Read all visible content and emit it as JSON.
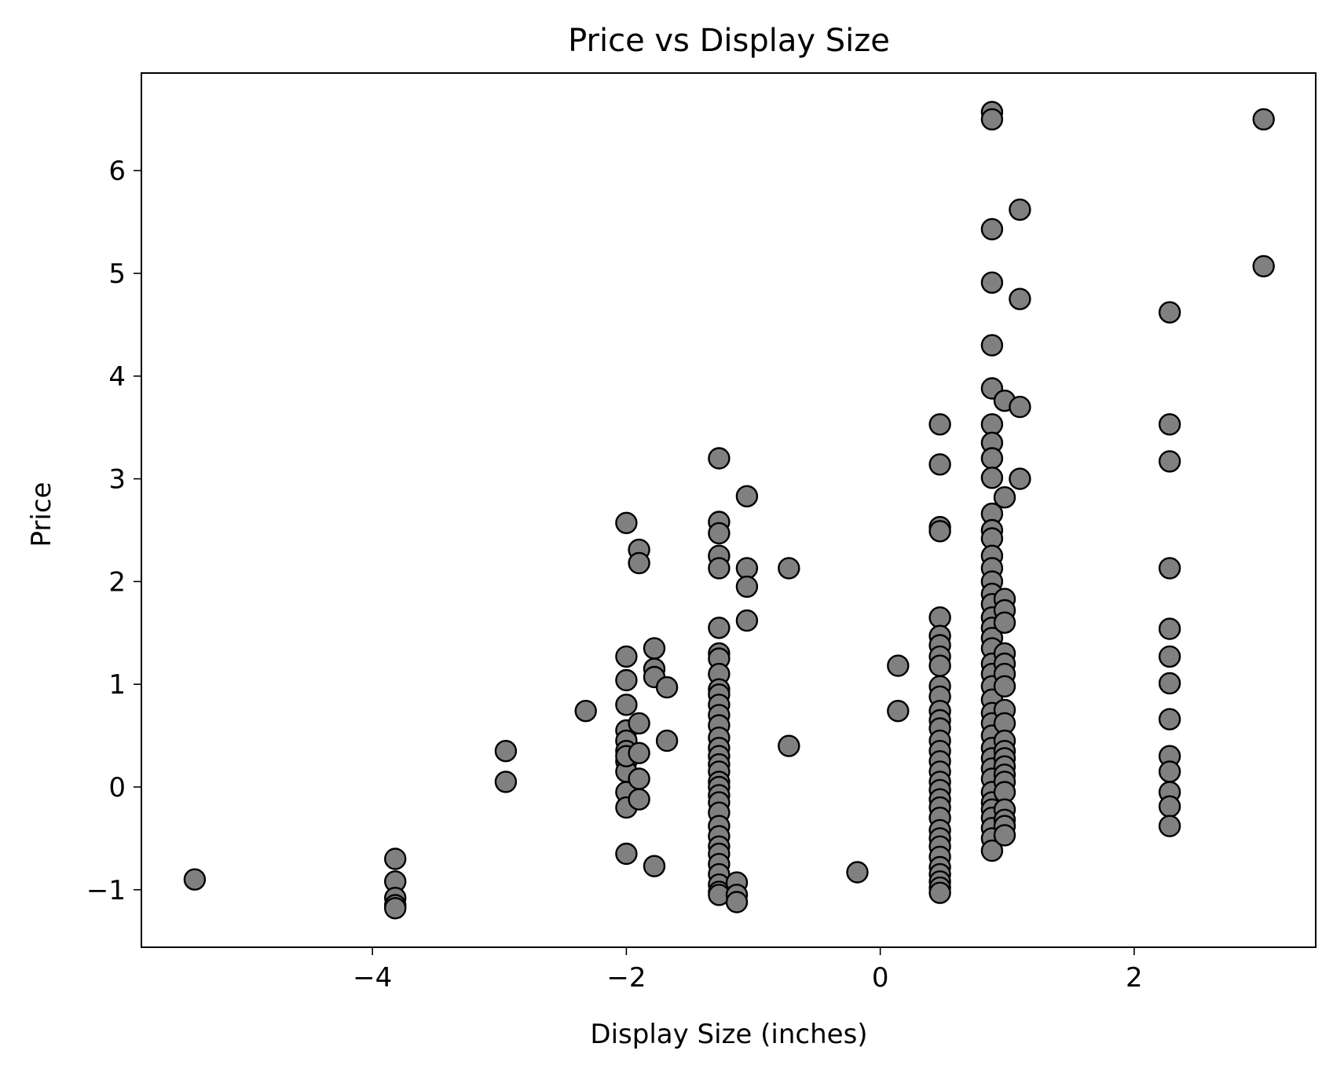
{
  "chart_data": {
    "type": "scatter",
    "title": "Price vs Display Size",
    "xlabel": "Display Size (inches)",
    "ylabel": "Price",
    "xlim": [
      -5.82,
      3.43
    ],
    "ylim": [
      -1.56,
      6.95
    ],
    "x_ticks": [
      -4,
      -2,
      0,
      2
    ],
    "x_tick_labels": [
      "−4",
      "−2",
      "0",
      "2"
    ],
    "y_ticks": [
      -1,
      0,
      1,
      2,
      3,
      4,
      5,
      6
    ],
    "y_tick_labels": [
      "−1",
      "0",
      "1",
      "2",
      "3",
      "4",
      "5",
      "6"
    ],
    "grid": false,
    "marker_color": "#808080",
    "marker_edge_color": "#000000",
    "points": [
      [
        -5.4,
        -0.9
      ],
      [
        -3.82,
        -0.7
      ],
      [
        -3.82,
        -0.92
      ],
      [
        -3.82,
        -1.08
      ],
      [
        -3.82,
        -1.15
      ],
      [
        -3.82,
        -1.18
      ],
      [
        -2.95,
        0.35
      ],
      [
        -2.95,
        0.05
      ],
      [
        -2.32,
        0.74
      ],
      [
        -2.0,
        2.57
      ],
      [
        -2.0,
        1.27
      ],
      [
        -2.0,
        1.04
      ],
      [
        -2.0,
        0.8
      ],
      [
        -2.0,
        0.55
      ],
      [
        -2.0,
        0.45
      ],
      [
        -2.0,
        0.35
      ],
      [
        -2.0,
        0.25
      ],
      [
        -2.0,
        0.15
      ],
      [
        -2.0,
        -0.05
      ],
      [
        -2.0,
        -0.2
      ],
      [
        -2.0,
        -0.65
      ],
      [
        -2.0,
        0.3
      ],
      [
        -1.9,
        2.31
      ],
      [
        -1.9,
        2.18
      ],
      [
        -1.9,
        0.62
      ],
      [
        -1.9,
        0.33
      ],
      [
        -1.9,
        0.08
      ],
      [
        -1.9,
        -0.12
      ],
      [
        -1.78,
        1.35
      ],
      [
        -1.78,
        1.15
      ],
      [
        -1.78,
        1.07
      ],
      [
        -1.78,
        -0.77
      ],
      [
        -1.68,
        0.97
      ],
      [
        -1.68,
        0.45
      ],
      [
        -1.27,
        3.2
      ],
      [
        -1.27,
        2.58
      ],
      [
        -1.27,
        2.47
      ],
      [
        -1.27,
        2.25
      ],
      [
        -1.27,
        2.13
      ],
      [
        -1.27,
        1.55
      ],
      [
        -1.27,
        1.3
      ],
      [
        -1.27,
        1.25
      ],
      [
        -1.27,
        1.1
      ],
      [
        -1.27,
        0.95
      ],
      [
        -1.27,
        0.9
      ],
      [
        -1.27,
        0.8
      ],
      [
        -1.27,
        0.7
      ],
      [
        -1.27,
        0.6
      ],
      [
        -1.27,
        0.48
      ],
      [
        -1.27,
        0.38
      ],
      [
        -1.27,
        0.3
      ],
      [
        -1.27,
        0.22
      ],
      [
        -1.27,
        0.15
      ],
      [
        -1.27,
        0.05
      ],
      [
        -1.27,
        0.0
      ],
      [
        -1.27,
        -0.08
      ],
      [
        -1.27,
        -0.15
      ],
      [
        -1.27,
        -0.25
      ],
      [
        -1.27,
        -0.38
      ],
      [
        -1.27,
        -0.48
      ],
      [
        -1.27,
        -0.58
      ],
      [
        -1.27,
        -0.65
      ],
      [
        -1.27,
        -0.75
      ],
      [
        -1.27,
        -0.85
      ],
      [
        -1.27,
        -0.95
      ],
      [
        -1.27,
        -1.02
      ],
      [
        -1.27,
        -1.05
      ],
      [
        -1.13,
        -0.93
      ],
      [
        -1.13,
        -1.05
      ],
      [
        -1.13,
        -1.12
      ],
      [
        -1.05,
        2.83
      ],
      [
        -1.05,
        2.13
      ],
      [
        -1.05,
        1.95
      ],
      [
        -1.05,
        1.62
      ],
      [
        -0.72,
        2.13
      ],
      [
        -0.72,
        0.4
      ],
      [
        -0.18,
        -0.83
      ],
      [
        0.14,
        1.18
      ],
      [
        0.14,
        0.74
      ],
      [
        0.47,
        3.53
      ],
      [
        0.47,
        3.14
      ],
      [
        0.47,
        2.53
      ],
      [
        0.47,
        2.49
      ],
      [
        0.47,
        1.65
      ],
      [
        0.47,
        1.47
      ],
      [
        0.47,
        1.38
      ],
      [
        0.47,
        1.27
      ],
      [
        0.47,
        1.18
      ],
      [
        0.47,
        0.98
      ],
      [
        0.47,
        0.88
      ],
      [
        0.47,
        0.74
      ],
      [
        0.47,
        0.65
      ],
      [
        0.47,
        0.57
      ],
      [
        0.47,
        0.45
      ],
      [
        0.47,
        0.35
      ],
      [
        0.47,
        0.25
      ],
      [
        0.47,
        0.15
      ],
      [
        0.47,
        0.05
      ],
      [
        0.47,
        -0.03
      ],
      [
        0.47,
        -0.12
      ],
      [
        0.47,
        -0.2
      ],
      [
        0.47,
        -0.3
      ],
      [
        0.47,
        -0.42
      ],
      [
        0.47,
        -0.5
      ],
      [
        0.47,
        -0.58
      ],
      [
        0.47,
        -0.68
      ],
      [
        0.47,
        -0.78
      ],
      [
        0.47,
        -0.85
      ],
      [
        0.47,
        -0.92
      ],
      [
        0.47,
        -0.98
      ],
      [
        0.47,
        -1.03
      ],
      [
        0.88,
        6.57
      ],
      [
        0.88,
        6.5
      ],
      [
        0.88,
        5.43
      ],
      [
        0.88,
        4.91
      ],
      [
        0.88,
        4.3
      ],
      [
        0.88,
        3.88
      ],
      [
        0.88,
        3.53
      ],
      [
        0.88,
        3.35
      ],
      [
        0.88,
        3.2
      ],
      [
        0.88,
        3.01
      ],
      [
        0.88,
        2.66
      ],
      [
        0.88,
        2.5
      ],
      [
        0.88,
        2.42
      ],
      [
        0.88,
        2.25
      ],
      [
        0.88,
        2.13
      ],
      [
        0.88,
        2.0
      ],
      [
        0.88,
        1.88
      ],
      [
        0.88,
        1.78
      ],
      [
        0.88,
        1.65
      ],
      [
        0.88,
        1.55
      ],
      [
        0.88,
        1.45
      ],
      [
        0.88,
        1.35
      ],
      [
        0.88,
        1.2
      ],
      [
        0.88,
        1.1
      ],
      [
        0.88,
        0.98
      ],
      [
        0.88,
        0.85
      ],
      [
        0.88,
        0.72
      ],
      [
        0.88,
        0.62
      ],
      [
        0.88,
        0.5
      ],
      [
        0.88,
        0.38
      ],
      [
        0.88,
        0.28
      ],
      [
        0.88,
        0.18
      ],
      [
        0.88,
        0.08
      ],
      [
        0.88,
        -0.05
      ],
      [
        0.88,
        -0.15
      ],
      [
        0.88,
        -0.22
      ],
      [
        0.88,
        -0.3
      ],
      [
        0.88,
        -0.4
      ],
      [
        0.88,
        -0.5
      ],
      [
        0.88,
        -0.62
      ],
      [
        0.98,
        3.76
      ],
      [
        0.98,
        2.82
      ],
      [
        0.98,
        1.83
      ],
      [
        0.98,
        1.72
      ],
      [
        0.98,
        1.6
      ],
      [
        0.98,
        1.3
      ],
      [
        0.98,
        1.2
      ],
      [
        0.98,
        1.1
      ],
      [
        0.98,
        0.98
      ],
      [
        0.98,
        0.75
      ],
      [
        0.98,
        0.62
      ],
      [
        0.98,
        0.45
      ],
      [
        0.98,
        0.35
      ],
      [
        0.98,
        0.28
      ],
      [
        0.98,
        0.2
      ],
      [
        0.98,
        0.12
      ],
      [
        0.98,
        0.05
      ],
      [
        0.98,
        -0.05
      ],
      [
        0.98,
        -0.22
      ],
      [
        0.98,
        -0.32
      ],
      [
        0.98,
        -0.38
      ],
      [
        0.98,
        -0.47
      ],
      [
        1.1,
        5.62
      ],
      [
        1.1,
        4.75
      ],
      [
        1.1,
        3.7
      ],
      [
        1.1,
        3.0
      ],
      [
        2.28,
        4.62
      ],
      [
        2.28,
        3.53
      ],
      [
        2.28,
        3.17
      ],
      [
        2.28,
        2.13
      ],
      [
        2.28,
        1.54
      ],
      [
        2.28,
        1.27
      ],
      [
        2.28,
        1.01
      ],
      [
        2.28,
        0.66
      ],
      [
        2.28,
        0.3
      ],
      [
        2.28,
        0.15
      ],
      [
        2.28,
        -0.05
      ],
      [
        2.28,
        -0.19
      ],
      [
        2.28,
        -0.38
      ],
      [
        3.02,
        6.5
      ],
      [
        3.02,
        5.07
      ]
    ]
  }
}
